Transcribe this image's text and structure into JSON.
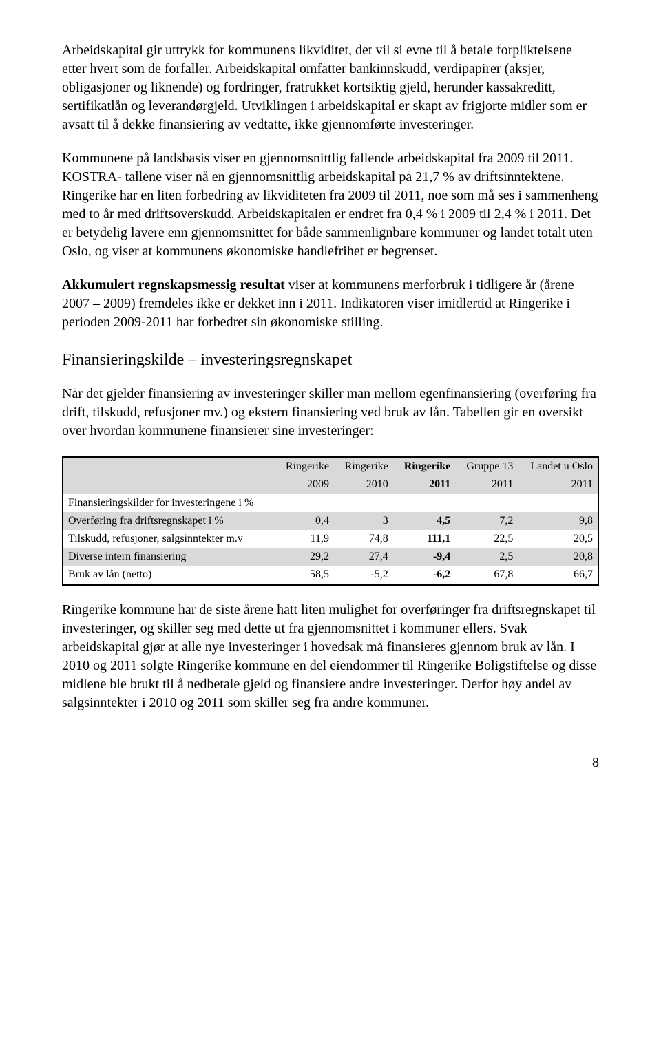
{
  "para1": "Arbeidskapital gir uttrykk for kommunens likviditet, det vil si evne til å betale forpliktelsene etter hvert som de forfaller. Arbeidskapital omfatter bankinnskudd, verdipapirer (aksjer, obligasjoner og liknende) og fordringer, fratrukket kortsiktig gjeld, herunder kassakreditt, sertifikatlån og leverandørgjeld. Utviklingen i arbeidskapital er skapt av frigjorte midler som er avsatt til å dekke finansiering av vedtatte, ikke gjennomførte investeringer.",
  "para2": "Kommunene på landsbasis viser en gjennomsnittlig fallende arbeidskapital fra 2009 til 2011. KOSTRA- tallene viser nå en gjennomsnittlig arbeidskapital på 21,7 % av driftsinntektene. Ringerike har en liten forbedring av likviditeten fra 2009 til 2011, noe som må ses i sammenheng med to år med driftsoverskudd. Arbeidskapitalen er endret fra 0,4 % i 2009 til 2,4 % i 2011. Det er betydelig lavere enn gjennomsnittet for både sammenlignbare kommuner og landet totalt uten Oslo, og viser at kommunens økonomiske handlefrihet er begrenset.",
  "para3_lead": "Akkumulert regnskapsmessig resultat",
  "para3_rest": " viser at kommunens merforbruk i tidligere år (årene 2007 – 2009) fremdeles ikke er dekket inn i 2011. Indikatoren viser imidlertid at Ringerike i perioden 2009-2011 har forbedret sin økonomiske stilling.",
  "section_title": "Finansieringskilde – investeringsregnskapet",
  "para4": "Når det gjelder finansiering av investeringer skiller man mellom egenfinansiering (overføring fra drift, tilskudd, refusjoner mv.) og ekstern finansiering ved bruk av lån. Tabellen gir en oversikt over hvordan kommunene finansierer sine investeringer:",
  "table": {
    "head1": [
      "",
      "Ringerike",
      "Ringerike",
      "Ringerike",
      "Gruppe 13",
      "Landet u Oslo"
    ],
    "head2": [
      "",
      "2009",
      "2010",
      "2011",
      "2011",
      "2011"
    ],
    "rows": [
      {
        "shade": false,
        "cells": [
          "Finansieringskilder for investeringene i %",
          "",
          "",
          "",
          "",
          ""
        ]
      },
      {
        "shade": true,
        "cells": [
          "Overføring fra driftsregnskapet i %",
          "0,4",
          "3",
          "4,5",
          "7,2",
          "9,8"
        ]
      },
      {
        "shade": false,
        "cells": [
          "Tilskudd, refusjoner, salgsinntekter m.v",
          "11,9",
          "74,8",
          "111,1",
          "22,5",
          "20,5"
        ]
      },
      {
        "shade": true,
        "cells": [
          "Diverse intern finansiering",
          "29,2",
          "27,4",
          "-9,4",
          "2,5",
          "20,8"
        ]
      },
      {
        "shade": false,
        "cells": [
          "Bruk av lån (netto)",
          "58,5",
          "-5,2",
          "-6,2",
          "67,8",
          "66,7"
        ]
      }
    ],
    "bold_col": 3
  },
  "para5": "Ringerike kommune har de siste årene hatt liten mulighet for overføringer fra driftsregnskapet til investeringer, og skiller seg med dette ut fra gjennomsnittet i kommuner ellers. Svak arbeidskapital gjør at alle nye investeringer i hovedsak må finansieres gjennom bruk av lån. I 2010 og 2011 solgte Ringerike kommune en del eiendommer til Ringerike Boligstiftelse og disse midlene ble brukt til å nedbetale gjeld og finansiere andre investeringer. Derfor høy andel av salgsinntekter i 2010 og 2011 som skiller seg fra andre kommuner.",
  "page_num": "8"
}
